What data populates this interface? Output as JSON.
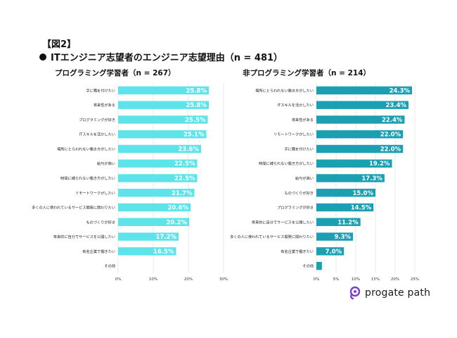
{
  "figure_label": "【図2】",
  "heading": "ITエンジニア志望者のエンジニア志望理由（n = 481）",
  "logo_text": "progate path",
  "colors": {
    "left_bar": "#5ce4ea",
    "right_bar": "#1b9fb3",
    "grid": "#e3e3e3",
    "logo": "#7a3fd1"
  },
  "chart_data": [
    {
      "type": "bar",
      "orientation": "horizontal",
      "title": "プログラミング学習者（n = 267）",
      "categories": [
        "手に職を付けたい",
        "将来性がある",
        "プログラミングが好き",
        "ITスキルを活かしたい",
        "場所にとらわれない働き方がしたい",
        "給与が高い",
        "時間に縛られない働き方がしたい",
        "リモートワークがしたい",
        "多くの人に使われているサービス開発に関わりたい",
        "ものづくりが好き",
        "将来的に自分でサービスを公開したい",
        "有名企業で働きたい",
        "その他"
      ],
      "values": [
        25.8,
        25.8,
        25.5,
        25.1,
        23.6,
        22.5,
        22.5,
        21.7,
        20.6,
        20.2,
        17.2,
        16.5,
        0
      ],
      "labels": [
        "25.8%",
        "25.8%",
        "25.5%",
        "25.1%",
        "23.6%",
        "22.5%",
        "22.5%",
        "21.7%",
        "20.6%",
        "20.2%",
        "17.2%",
        "16.5%",
        ""
      ],
      "xlim": [
        0,
        30
      ],
      "xticks": [
        "0%",
        "10%",
        "20%",
        "30%"
      ],
      "grid": true
    },
    {
      "type": "bar",
      "orientation": "horizontal",
      "title": "非プログラミング学習者（n = 214）",
      "categories": [
        "場所にとらわれない働き方がしたい",
        "ITスキルを活かしたい",
        "将来性がある",
        "リモートワークがしたい",
        "手に職を付けたい",
        "時間に縛られない働き方がしたい",
        "給与が高い",
        "ものづくりが好き",
        "プログラミングが好き",
        "将来的に自分でサービスを公開したい",
        "多くの人に使われているサービス開発に関わりたい",
        "有名企業で働きたい",
        "その他"
      ],
      "values": [
        24.3,
        23.4,
        22.4,
        22.0,
        22.0,
        19.2,
        17.3,
        15.0,
        14.5,
        11.2,
        9.3,
        7.0,
        1.4
      ],
      "labels": [
        "24.3%",
        "23.4%",
        "22.4%",
        "22.0%",
        "22.0%",
        "19.2%",
        "17.3%",
        "15.0%",
        "14.5%",
        "11.2%",
        "9.3%",
        "7.0%",
        ""
      ],
      "xlim": [
        0,
        25
      ],
      "xticks": [
        "0%",
        "5%",
        "10%",
        "15%",
        "20%",
        "25%"
      ],
      "grid": true
    }
  ]
}
